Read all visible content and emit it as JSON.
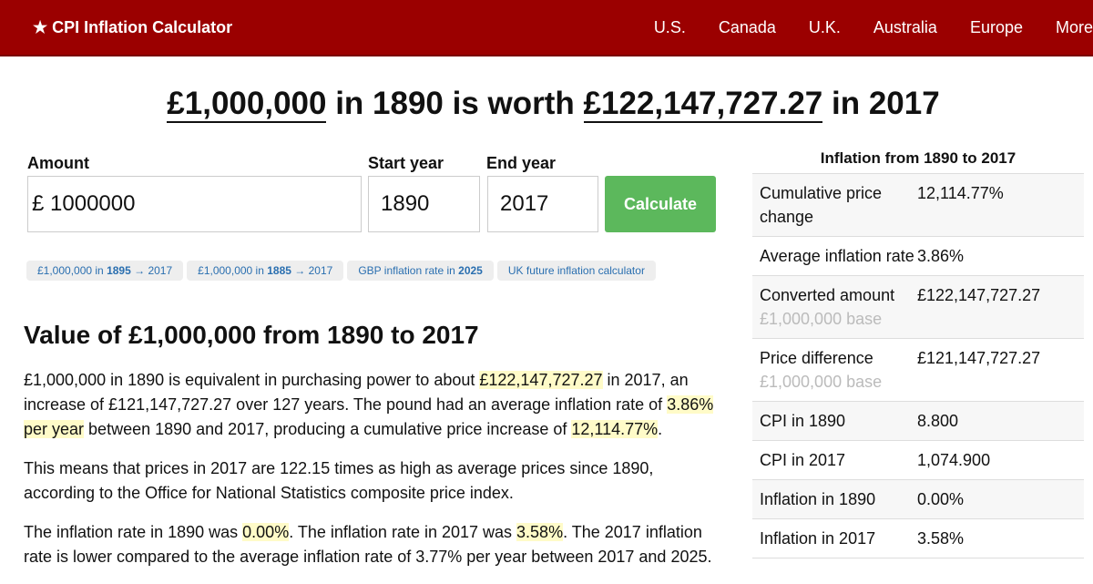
{
  "header": {
    "brand": "★ CPI Inflation Calculator",
    "nav": [
      "U.S.",
      "Canada",
      "U.K.",
      "Australia",
      "Europe",
      "More"
    ]
  },
  "headline": [
    "£1,000,000",
    " in 1890 is worth ",
    "£122,147,727.27",
    " in 2017"
  ],
  "form": {
    "amount_label": "Amount",
    "currency": "£",
    "amount": "1000000",
    "start_label": "Start year",
    "start": "1890",
    "end_label": "End year",
    "end": "2017",
    "button": "Calculate"
  },
  "chips": [
    [
      "£1,000,000 in ",
      "1895",
      " → 2017"
    ],
    [
      "£1,000,000 in ",
      "1885",
      " → 2017"
    ],
    [
      "GBP inflation rate in ",
      "2025"
    ],
    [
      "UK future inflation calculator"
    ]
  ],
  "article": {
    "heading": "Value of £1,000,000 from 1890 to 2017",
    "paragraphs": [
      [
        "£1,000,000 in 1890 is equivalent in purchasing power to about ",
        "£122,147,727.27",
        " in 2017, an increase of £121,147,727.27 over 127 years. The pound had an average inflation rate of ",
        "3.86% per year",
        " between 1890 and 2017, producing a cumulative price increase of ",
        "12,114.77%",
        "."
      ],
      [
        "This means that prices in 2017 are 122.15 times as high as average prices since 1890, according to the Office for National Statistics composite price index."
      ],
      [
        "The inflation rate in 1890 was ",
        "0.00%",
        ". The inflation rate in 2017 was ",
        "3.58%",
        ". The 2017 inflation rate is lower compared to the average inflation rate of 3.77% per year between 2017 and 2025."
      ]
    ]
  },
  "table": {
    "title": "Inflation from 1890 to 2017",
    "rows": [
      {
        "label": "Cumulative price change",
        "value": "12,114.77%"
      },
      {
        "label": "Average inflation rate",
        "value": "3.86%"
      },
      {
        "label": "Converted amount",
        "sub": "£1,000,000 base",
        "value": "£122,147,727.27"
      },
      {
        "label": "Price difference",
        "sub": "£1,000,000 base",
        "value": "£121,147,727.27"
      },
      {
        "label": "CPI in 1890",
        "value": "8.800"
      },
      {
        "label": "CPI in 2017",
        "value": "1,074.900"
      },
      {
        "label": "Inflation in 1890",
        "value": "0.00%"
      },
      {
        "label": "Inflation in 2017",
        "value": "3.58%"
      }
    ]
  }
}
